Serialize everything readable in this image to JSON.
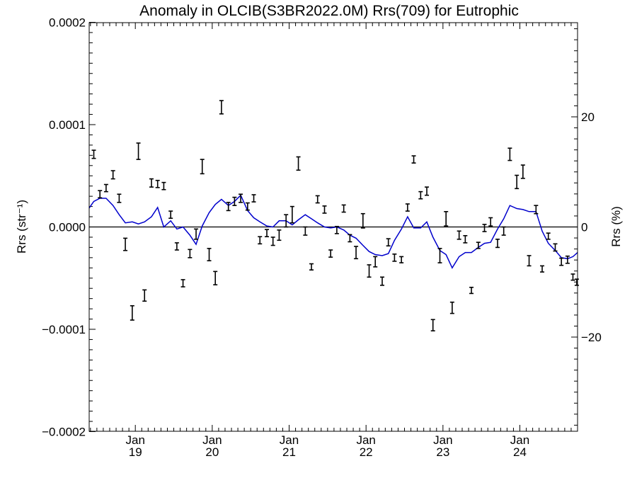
{
  "chart_data": {
    "type": "line",
    "title": "Anomaly in OLCIB(S3BR2022.0M) Rrs(709) for Eutrophic",
    "ylabel_left": "Rrs (str⁻¹)",
    "ylabel_right": "Rrs (%)",
    "ylim_left": [
      -0.0002,
      0.0002
    ],
    "ylim_right": [
      -37,
      37
    ],
    "xlim": [
      2018.4,
      2024.75
    ],
    "left_ticks": [
      {
        "value": 0.0002,
        "label": "0.0002"
      },
      {
        "value": 0.0001,
        "label": "0.0001"
      },
      {
        "value": 0.0,
        "label": "0.0000"
      },
      {
        "value": -0.0001,
        "label": "−0.0001"
      },
      {
        "value": -0.0002,
        "label": "−0.0002"
      }
    ],
    "right_ticks": [
      {
        "value": 20,
        "label": "20"
      },
      {
        "value": 0,
        "label": "0"
      },
      {
        "value": -20,
        "label": "−20"
      }
    ],
    "x_ticks": [
      {
        "value": 2019.0,
        "month": "Jan",
        "year": "19"
      },
      {
        "value": 2020.0,
        "month": "Jan",
        "year": "20"
      },
      {
        "value": 2021.0,
        "month": "Jan",
        "year": "21"
      },
      {
        "value": 2022.0,
        "month": "Jan",
        "year": "22"
      },
      {
        "value": 2023.0,
        "month": "Jan",
        "year": "23"
      },
      {
        "value": 2024.0,
        "month": "Jan",
        "year": "24"
      }
    ],
    "zero_line": true,
    "series": [
      {
        "style": "error-bar",
        "color": "#000000",
        "points": [
          {
            "x": 2018.46,
            "y": 7.1e-05,
            "err": 4e-06
          },
          {
            "x": 2018.54,
            "y": 3.2e-05,
            "err": 3.5e-06
          },
          {
            "x": 2018.62,
            "y": 3.8e-05,
            "err": 3.5e-06
          },
          {
            "x": 2018.71,
            "y": 5.1e-05,
            "err": 4e-06
          },
          {
            "x": 2018.79,
            "y": 2.8e-05,
            "err": 4e-06
          },
          {
            "x": 2018.87,
            "y": -1.7e-05,
            "err": 6e-06
          },
          {
            "x": 2018.96,
            "y": -8.4e-05,
            "err": 7e-06
          },
          {
            "x": 2019.04,
            "y": 7.4e-05,
            "err": 8e-06
          },
          {
            "x": 2019.12,
            "y": -6.7e-05,
            "err": 5.5e-06
          },
          {
            "x": 2019.21,
            "y": 4.3e-05,
            "err": 4e-06
          },
          {
            "x": 2019.29,
            "y": 4.2e-05,
            "err": 3.5e-06
          },
          {
            "x": 2019.37,
            "y": 4e-05,
            "err": 3.5e-06
          },
          {
            "x": 2019.46,
            "y": 1.2e-05,
            "err": 3.5e-06
          },
          {
            "x": 2019.54,
            "y": -1.9e-05,
            "err": 3.5e-06
          },
          {
            "x": 2019.62,
            "y": -5.5e-05,
            "err": 3.5e-06
          },
          {
            "x": 2019.71,
            "y": -2.6e-05,
            "err": 4e-06
          },
          {
            "x": 2019.79,
            "y": -7e-06,
            "err": 5e-06
          },
          {
            "x": 2019.87,
            "y": 5.9e-05,
            "err": 7e-06
          },
          {
            "x": 2019.96,
            "y": -2.7e-05,
            "err": 6e-06
          },
          {
            "x": 2020.04,
            "y": -5e-05,
            "err": 6.5e-06
          },
          {
            "x": 2020.12,
            "y": 0.000117,
            "err": 6.5e-06
          },
          {
            "x": 2020.21,
            "y": 2e-05,
            "err": 4e-06
          },
          {
            "x": 2020.29,
            "y": 2.5e-05,
            "err": 4e-06
          },
          {
            "x": 2020.37,
            "y": 2.8e-05,
            "err": 4e-06
          },
          {
            "x": 2020.46,
            "y": 2e-05,
            "err": 3.5e-06
          },
          {
            "x": 2020.54,
            "y": 2.8e-05,
            "err": 3.5e-06
          },
          {
            "x": 2020.62,
            "y": -1.3e-05,
            "err": 3.5e-06
          },
          {
            "x": 2020.71,
            "y": -6e-06,
            "err": 3.5e-06
          },
          {
            "x": 2020.79,
            "y": -1.4e-05,
            "err": 4e-06
          },
          {
            "x": 2020.87,
            "y": -8e-06,
            "err": 5e-06
          },
          {
            "x": 2020.96,
            "y": 6e-06,
            "err": 6e-06
          },
          {
            "x": 2021.04,
            "y": 1.2e-05,
            "err": 8e-06
          },
          {
            "x": 2021.12,
            "y": 6.2e-05,
            "err": 6.5e-06
          },
          {
            "x": 2021.21,
            "y": -4e-06,
            "err": 4e-06
          },
          {
            "x": 2021.29,
            "y": -3.9e-05,
            "err": 3e-06
          },
          {
            "x": 2021.37,
            "y": 2.7e-05,
            "err": 3.5e-06
          },
          {
            "x": 2021.46,
            "y": 1.7e-05,
            "err": 3.5e-06
          },
          {
            "x": 2021.54,
            "y": -2.6e-05,
            "err": 3.5e-06
          },
          {
            "x": 2021.62,
            "y": -3e-06,
            "err": 3.5e-06
          },
          {
            "x": 2021.71,
            "y": 1.8e-05,
            "err": 3.5e-06
          },
          {
            "x": 2021.79,
            "y": -1.1e-05,
            "err": 3.5e-06
          },
          {
            "x": 2021.87,
            "y": -2.5e-05,
            "err": 6e-06
          },
          {
            "x": 2021.96,
            "y": 6e-06,
            "err": 7e-06
          },
          {
            "x": 2022.04,
            "y": -4.3e-05,
            "err": 6e-06
          },
          {
            "x": 2022.12,
            "y": -3.4e-05,
            "err": 5e-06
          },
          {
            "x": 2022.21,
            "y": -5.3e-05,
            "err": 4e-06
          },
          {
            "x": 2022.29,
            "y": -1.5e-05,
            "err": 3.5e-06
          },
          {
            "x": 2022.37,
            "y": -3e-05,
            "err": 3.5e-06
          },
          {
            "x": 2022.46,
            "y": -3.2e-05,
            "err": 3e-06
          },
          {
            "x": 2022.54,
            "y": 1.9e-05,
            "err": 3.5e-06
          },
          {
            "x": 2022.62,
            "y": 6.6e-05,
            "err": 3.5e-06
          },
          {
            "x": 2022.71,
            "y": 3.1e-05,
            "err": 3.5e-06
          },
          {
            "x": 2022.79,
            "y": 3.5e-05,
            "err": 4e-06
          },
          {
            "x": 2022.87,
            "y": -9.6e-05,
            "err": 5.5e-06
          },
          {
            "x": 2022.96,
            "y": -2.8e-05,
            "err": 7e-06
          },
          {
            "x": 2023.04,
            "y": 8e-06,
            "err": 7e-06
          },
          {
            "x": 2023.12,
            "y": -7.9e-05,
            "err": 5.5e-06
          },
          {
            "x": 2023.21,
            "y": -8e-06,
            "err": 4e-06
          },
          {
            "x": 2023.29,
            "y": -1.2e-05,
            "err": 3.5e-06
          },
          {
            "x": 2023.37,
            "y": -6.2e-05,
            "err": 3e-06
          },
          {
            "x": 2023.46,
            "y": -1.8e-05,
            "err": 3e-06
          },
          {
            "x": 2023.54,
            "y": -1e-06,
            "err": 3.5e-06
          },
          {
            "x": 2023.62,
            "y": 5e-06,
            "err": 4e-06
          },
          {
            "x": 2023.71,
            "y": -1.6e-05,
            "err": 4e-06
          },
          {
            "x": 2023.79,
            "y": -4e-06,
            "err": 4e-06
          },
          {
            "x": 2023.87,
            "y": 7.1e-05,
            "err": 6e-06
          },
          {
            "x": 2023.96,
            "y": 4.4e-05,
            "err": 6.5e-06
          },
          {
            "x": 2024.04,
            "y": 5.4e-05,
            "err": 6.5e-06
          },
          {
            "x": 2024.12,
            "y": -3.3e-05,
            "err": 5e-06
          },
          {
            "x": 2024.21,
            "y": 1.7e-05,
            "err": 4e-06
          },
          {
            "x": 2024.29,
            "y": -4.1e-05,
            "err": 3e-06
          },
          {
            "x": 2024.37,
            "y": -9e-06,
            "err": 3e-06
          },
          {
            "x": 2024.46,
            "y": -2e-05,
            "err": 3.5e-06
          },
          {
            "x": 2024.54,
            "y": -3.4e-05,
            "err": 3.5e-06
          },
          {
            "x": 2024.62,
            "y": -3.2e-05,
            "err": 3.5e-06
          },
          {
            "x": 2024.69,
            "y": -4.9e-05,
            "err": 3e-06
          },
          {
            "x": 2024.74,
            "y": -5.4e-05,
            "err": 3e-06
          }
        ]
      },
      {
        "style": "line",
        "color": "#0000cc",
        "points": [
          {
            "x": 2018.4,
            "y": 1.85e-05
          },
          {
            "x": 2018.46,
            "y": 2.5e-05
          },
          {
            "x": 2018.54,
            "y": 2.8e-05
          },
          {
            "x": 2018.62,
            "y": 2.8e-05
          },
          {
            "x": 2018.71,
            "y": 2.1e-05
          },
          {
            "x": 2018.79,
            "y": 1.2e-05
          },
          {
            "x": 2018.87,
            "y": 4e-06
          },
          {
            "x": 2018.96,
            "y": 5e-06
          },
          {
            "x": 2019.04,
            "y": 3e-06
          },
          {
            "x": 2019.12,
            "y": 5e-06
          },
          {
            "x": 2019.21,
            "y": 1e-05
          },
          {
            "x": 2019.29,
            "y": 1.9e-05
          },
          {
            "x": 2019.37,
            "y": 0.0
          },
          {
            "x": 2019.46,
            "y": 6e-06
          },
          {
            "x": 2019.54,
            "y": -2e-06
          },
          {
            "x": 2019.62,
            "y": 0.0
          },
          {
            "x": 2019.71,
            "y": -8e-06
          },
          {
            "x": 2019.79,
            "y": -1.7e-05
          },
          {
            "x": 2019.87,
            "y": 1e-06
          },
          {
            "x": 2019.96,
            "y": 1.4e-05
          },
          {
            "x": 2020.04,
            "y": 2.2e-05
          },
          {
            "x": 2020.12,
            "y": 2.7e-05
          },
          {
            "x": 2020.21,
            "y": 2.1e-05
          },
          {
            "x": 2020.29,
            "y": 2.5e-05
          },
          {
            "x": 2020.37,
            "y": 3.1e-05
          },
          {
            "x": 2020.46,
            "y": 1.6e-05
          },
          {
            "x": 2020.54,
            "y": 9e-06
          },
          {
            "x": 2020.62,
            "y": 5e-06
          },
          {
            "x": 2020.71,
            "y": 1e-06
          },
          {
            "x": 2020.79,
            "y": 0.0
          },
          {
            "x": 2020.87,
            "y": 6e-06
          },
          {
            "x": 2020.96,
            "y": 6e-06
          },
          {
            "x": 2021.04,
            "y": 2e-06
          },
          {
            "x": 2021.12,
            "y": 7e-06
          },
          {
            "x": 2021.21,
            "y": 1.2e-05
          },
          {
            "x": 2021.29,
            "y": 8e-06
          },
          {
            "x": 2021.37,
            "y": 4e-06
          },
          {
            "x": 2021.46,
            "y": 0.0
          },
          {
            "x": 2021.54,
            "y": -1e-06
          },
          {
            "x": 2021.62,
            "y": 0.0
          },
          {
            "x": 2021.71,
            "y": -3e-06
          },
          {
            "x": 2021.79,
            "y": -8e-06
          },
          {
            "x": 2021.87,
            "y": -1.1e-05
          },
          {
            "x": 2021.96,
            "y": -1.8e-05
          },
          {
            "x": 2022.04,
            "y": -2.4e-05
          },
          {
            "x": 2022.12,
            "y": -2.7e-05
          },
          {
            "x": 2022.21,
            "y": -2.8e-05
          },
          {
            "x": 2022.29,
            "y": -2.6e-05
          },
          {
            "x": 2022.37,
            "y": -1.3e-05
          },
          {
            "x": 2022.46,
            "y": -2e-06
          },
          {
            "x": 2022.54,
            "y": 1e-05
          },
          {
            "x": 2022.62,
            "y": -1e-06
          },
          {
            "x": 2022.71,
            "y": -1e-06
          },
          {
            "x": 2022.79,
            "y": 5e-06
          },
          {
            "x": 2022.87,
            "y": -1e-05
          },
          {
            "x": 2022.96,
            "y": -2.3e-05
          },
          {
            "x": 2023.04,
            "y": -2.7e-05
          },
          {
            "x": 2023.12,
            "y": -4e-05
          },
          {
            "x": 2023.21,
            "y": -2.9e-05
          },
          {
            "x": 2023.29,
            "y": -2.5e-05
          },
          {
            "x": 2023.37,
            "y": -2.5e-05
          },
          {
            "x": 2023.46,
            "y": -2e-05
          },
          {
            "x": 2023.54,
            "y": -1.6e-05
          },
          {
            "x": 2023.62,
            "y": -1.5e-05
          },
          {
            "x": 2023.71,
            "y": -2e-06
          },
          {
            "x": 2023.79,
            "y": 8e-06
          },
          {
            "x": 2023.87,
            "y": 2.1e-05
          },
          {
            "x": 2023.96,
            "y": 1.8e-05
          },
          {
            "x": 2024.04,
            "y": 1.7e-05
          },
          {
            "x": 2024.12,
            "y": 1.5e-05
          },
          {
            "x": 2024.21,
            "y": 1.5e-05
          },
          {
            "x": 2024.29,
            "y": -4e-06
          },
          {
            "x": 2024.37,
            "y": -1.6e-05
          },
          {
            "x": 2024.46,
            "y": -2.3e-05
          },
          {
            "x": 2024.54,
            "y": -3e-05
          },
          {
            "x": 2024.62,
            "y": -3.1e-05
          },
          {
            "x": 2024.69,
            "y": -2.9e-05
          },
          {
            "x": 2024.75,
            "y": -2.5e-05
          }
        ]
      }
    ]
  }
}
